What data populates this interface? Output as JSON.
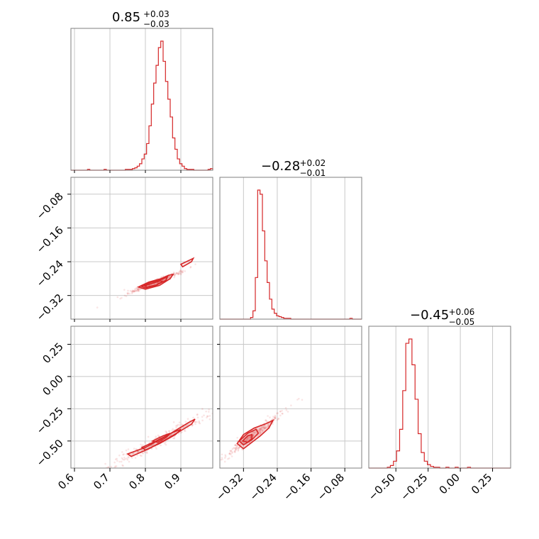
{
  "chart_data": {
    "type": "corner",
    "color": "#d62728",
    "grid": true,
    "parameters": [
      {
        "title": {
          "median": "0.85",
          "plus": "+0.03",
          "minus": "−0.03"
        },
        "range": [
          0.59,
          0.99
        ],
        "ticks": [
          0.6,
          0.7,
          0.8,
          0.9
        ],
        "tick_labels": [
          "0.6",
          "0.7",
          "0.8",
          "0.9"
        ]
      },
      {
        "title": {
          "median": "−0.28",
          "plus": "+0.02",
          "minus": "−0.01"
        },
        "range": [
          -0.376,
          -0.04
        ],
        "ticks": [
          -0.32,
          -0.24,
          -0.16,
          -0.08
        ],
        "tick_labels": [
          "−0.32",
          "−0.24",
          "−0.16",
          "−0.08"
        ]
      },
      {
        "title": {
          "median": "−0.45",
          "plus": "+0.06",
          "minus": "−0.05"
        },
        "range": [
          -0.71,
          0.39
        ],
        "ticks": [
          -0.5,
          -0.25,
          0.0,
          0.25
        ],
        "tick_labels": [
          "−0.50",
          "−0.25",
          "0.00",
          "0.25"
        ]
      }
    ],
    "histograms": [
      {
        "bin_edges": [
          0.59,
          0.99
        ],
        "counts": [
          0,
          0,
          0,
          0,
          0,
          0,
          0,
          1,
          0,
          0,
          0,
          0,
          0,
          0,
          1,
          0,
          0,
          0,
          0,
          0,
          0,
          0,
          0,
          1,
          1,
          1,
          2,
          3,
          5,
          8,
          14,
          20,
          33,
          55,
          82,
          108,
          130,
          152,
          160,
          135,
          110,
          88,
          66,
          40,
          26,
          14,
          8,
          5,
          2,
          1,
          1,
          1,
          0,
          0,
          0,
          0,
          0,
          0,
          1,
          2
        ]
      },
      {
        "bin_edges": [
          -0.376,
          -0.04
        ],
        "counts": [
          0,
          0,
          0,
          0,
          0,
          0,
          0,
          0,
          0,
          0,
          0,
          0,
          0,
          2,
          10,
          50,
          155,
          150,
          106,
          70,
          44,
          24,
          12,
          7,
          4,
          3,
          2,
          1,
          1,
          1,
          0,
          0,
          0,
          0,
          0,
          0,
          0,
          0,
          0,
          0,
          0,
          0,
          0,
          0,
          0,
          0,
          0,
          0,
          0,
          0,
          0,
          0,
          0,
          0,
          0,
          1,
          0,
          0,
          0,
          0
        ]
      },
      {
        "bin_edges": [
          -0.71,
          0.39
        ],
        "counts": [
          0,
          0,
          0,
          0,
          0,
          0,
          1,
          3,
          8,
          20,
          45,
          90,
          145,
          150,
          120,
          80,
          40,
          18,
          8,
          4,
          2,
          1,
          1,
          0,
          0,
          1,
          0,
          0,
          1,
          0,
          0,
          0,
          1,
          0,
          0,
          0,
          0,
          0,
          0,
          0,
          0,
          0,
          0,
          0,
          0,
          0
        ]
      }
    ],
    "pairs": [
      {
        "x_param": 0,
        "y_param": 1,
        "contour_levels": [
          [
            [
              0.78,
              -0.3
            ],
            [
              0.81,
              -0.288
            ],
            [
              0.845,
              -0.28
            ],
            [
              0.865,
              -0.272
            ],
            [
              0.878,
              -0.27
            ],
            [
              0.87,
              -0.28
            ],
            [
              0.84,
              -0.296
            ],
            [
              0.8,
              -0.305
            ],
            [
              0.78,
              -0.3
            ]
          ],
          [
            [
              0.788,
              -0.298
            ],
            [
              0.815,
              -0.289
            ],
            [
              0.845,
              -0.282
            ],
            [
              0.862,
              -0.276
            ],
            [
              0.858,
              -0.284
            ],
            [
              0.83,
              -0.296
            ],
            [
              0.8,
              -0.302
            ],
            [
              0.788,
              -0.298
            ]
          ],
          [
            [
              0.798,
              -0.297
            ],
            [
              0.82,
              -0.291
            ],
            [
              0.842,
              -0.285
            ],
            [
              0.848,
              -0.287
            ],
            [
              0.83,
              -0.295
            ],
            [
              0.805,
              -0.3
            ],
            [
              0.798,
              -0.297
            ]
          ],
          [
            [
              0.9,
              -0.246
            ],
            [
              0.925,
              -0.236
            ],
            [
              0.935,
              -0.232
            ],
            [
              0.93,
              -0.24
            ],
            [
              0.905,
              -0.252
            ],
            [
              0.9,
              -0.246
            ]
          ]
        ]
      },
      {
        "x_param": 0,
        "y_param": 2,
        "contour_levels": [
          [
            [
              0.75,
              -0.6
            ],
            [
              0.8,
              -0.55
            ],
            [
              0.86,
              -0.46
            ],
            [
              0.92,
              -0.36
            ],
            [
              0.94,
              -0.33
            ],
            [
              0.93,
              -0.37
            ],
            [
              0.87,
              -0.47
            ],
            [
              0.81,
              -0.56
            ],
            [
              0.76,
              -0.62
            ],
            [
              0.75,
              -0.6
            ]
          ],
          [
            [
              0.79,
              -0.55
            ],
            [
              0.83,
              -0.5
            ],
            [
              0.88,
              -0.43
            ],
            [
              0.9,
              -0.41
            ],
            [
              0.885,
              -0.45
            ],
            [
              0.84,
              -0.52
            ],
            [
              0.8,
              -0.57
            ],
            [
              0.79,
              -0.55
            ]
          ],
          [
            [
              0.82,
              -0.5
            ],
            [
              0.85,
              -0.46
            ],
            [
              0.87,
              -0.44
            ],
            [
              0.86,
              -0.47
            ],
            [
              0.835,
              -0.51
            ],
            [
              0.82,
              -0.5
            ]
          ]
        ]
      },
      {
        "x_param": 1,
        "y_param": 2,
        "contour_levels": [
          [
            [
              -0.335,
              -0.52
            ],
            [
              -0.32,
              -0.45
            ],
            [
              -0.295,
              -0.4
            ],
            [
              -0.27,
              -0.37
            ],
            [
              -0.25,
              -0.34
            ],
            [
              -0.26,
              -0.4
            ],
            [
              -0.28,
              -0.46
            ],
            [
              -0.3,
              -0.51
            ],
            [
              -0.32,
              -0.56
            ],
            [
              -0.335,
              -0.52
            ]
          ],
          [
            [
              -0.33,
              -0.5
            ],
            [
              -0.31,
              -0.44
            ],
            [
              -0.29,
              -0.41
            ],
            [
              -0.285,
              -0.44
            ],
            [
              -0.3,
              -0.49
            ],
            [
              -0.32,
              -0.53
            ],
            [
              -0.33,
              -0.5
            ]
          ],
          [
            [
              -0.322,
              -0.5
            ],
            [
              -0.31,
              -0.46
            ],
            [
              -0.3,
              -0.45
            ],
            [
              -0.3,
              -0.48
            ],
            [
              -0.31,
              -0.51
            ],
            [
              -0.322,
              -0.5
            ]
          ]
        ]
      }
    ]
  }
}
